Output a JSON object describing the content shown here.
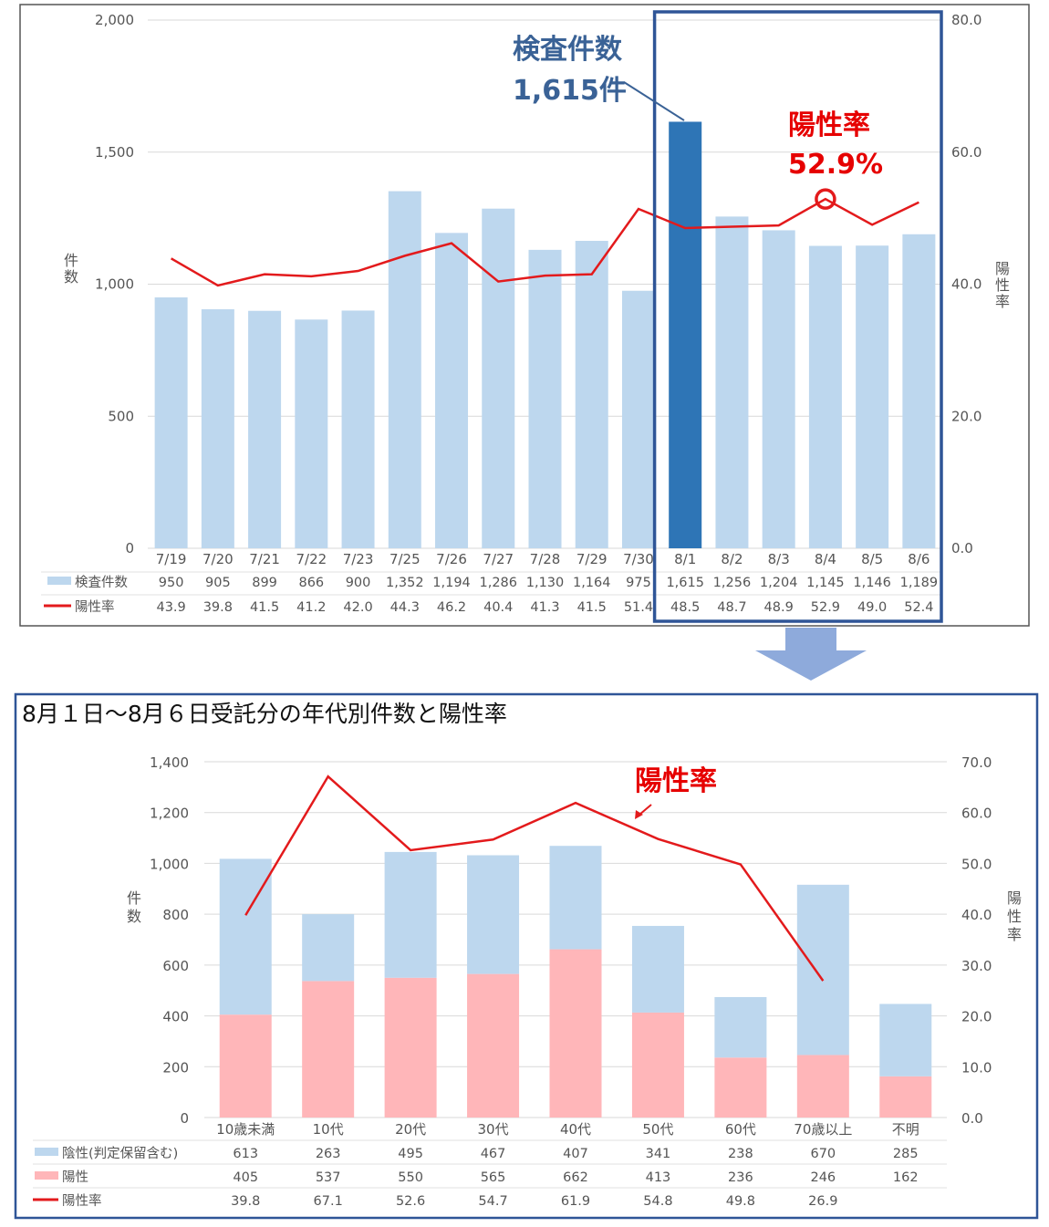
{
  "chart_data": [
    {
      "type": "bar",
      "categories": [
        "7/19",
        "7/20",
        "7/21",
        "7/22",
        "7/23",
        "7/25",
        "7/26",
        "7/27",
        "7/28",
        "7/29",
        "7/30",
        "8/1",
        "8/2",
        "8/3",
        "8/4",
        "8/5",
        "8/6"
      ],
      "series": [
        {
          "name": "検査件数",
          "type": "bar",
          "labels": [
            "950",
            "905",
            "899",
            "866",
            "900",
            "1,352",
            "1,194",
            "1,286",
            "1,130",
            "1,164",
            "975",
            "1,615",
            "1,256",
            "1,204",
            "1,145",
            "1,146",
            "1,189"
          ],
          "values": [
            950,
            905,
            899,
            866,
            900,
            1352,
            1194,
            1286,
            1130,
            1164,
            975,
            1615,
            1256,
            1204,
            1145,
            1146,
            1189
          ]
        },
        {
          "name": "陽性率",
          "type": "line",
          "axis": "right",
          "labels": [
            "43.9",
            "39.8",
            "41.5",
            "41.2",
            "42.0",
            "44.3",
            "46.2",
            "40.4",
            "41.3",
            "41.5",
            "51.4",
            "48.5",
            "48.7",
            "48.9",
            "52.9",
            "49.0",
            "52.4"
          ],
          "values": [
            43.9,
            39.8,
            41.5,
            41.2,
            42.0,
            44.3,
            46.2,
            40.4,
            41.3,
            41.5,
            51.4,
            48.5,
            48.7,
            48.9,
            52.9,
            49.0,
            52.4
          ]
        }
      ],
      "ylabel": "件数",
      "y2label": "陽性率",
      "ylim": [
        0,
        2000
      ],
      "y2lim": [
        0,
        80
      ],
      "yticks": [
        "0",
        "500",
        "1,000",
        "1,500",
        "2,000"
      ],
      "y2ticks": [
        "0.0",
        "20.0",
        "40.0",
        "60.0",
        "80.0"
      ],
      "highlight_index": 11,
      "highlight_box": [
        "8/1",
        "8/6"
      ],
      "annotations": {
        "count_title": "検査件数",
        "count_value": "1,615件",
        "rate_title": "陽性率",
        "rate_value": "52.9%",
        "rate_marker_index": 14
      },
      "colors": {
        "bar": "#bdd7ee",
        "bar_highlight": "#2e75b6",
        "line": "#e31a1c",
        "box": "#2f5597",
        "ann_blue": "#3a6296",
        "ann_red": "#e60000"
      },
      "grid": true
    },
    {
      "type": "bar",
      "stacked": true,
      "title": "8月１日～8月６日受託分の年代別件数と陽性率",
      "categories": [
        "10歳未満",
        "10代",
        "20代",
        "30代",
        "40代",
        "50代",
        "60代",
        "70歳以上",
        "不明"
      ],
      "series": [
        {
          "name": "陽性",
          "type": "bar",
          "labels": [
            "405",
            "537",
            "550",
            "565",
            "662",
            "413",
            "236",
            "246",
            "162"
          ],
          "values": [
            405,
            537,
            550,
            565,
            662,
            413,
            236,
            246,
            162
          ]
        },
        {
          "name": "陰性(判定保留含む)",
          "type": "bar",
          "labels": [
            "613",
            "263",
            "495",
            "467",
            "407",
            "341",
            "238",
            "670",
            "285"
          ],
          "values": [
            613,
            263,
            495,
            467,
            407,
            341,
            238,
            670,
            285
          ]
        },
        {
          "name": "陽性率",
          "type": "line",
          "axis": "right",
          "labels": [
            "39.8",
            "67.1",
            "52.6",
            "54.7",
            "61.9",
            "54.8",
            "49.8",
            "26.9",
            ""
          ],
          "values": [
            39.8,
            67.1,
            52.6,
            54.7,
            61.9,
            54.8,
            49.8,
            26.9,
            null
          ]
        }
      ],
      "ylabel": "件数",
      "y2label": "陽性率",
      "ylim": [
        0,
        1400
      ],
      "y2lim": [
        0,
        70
      ],
      "yticks": [
        "0",
        "200",
        "400",
        "600",
        "800",
        "1,000",
        "1,200",
        "1,400"
      ],
      "y2ticks": [
        "0.0",
        "10.0",
        "20.0",
        "30.0",
        "40.0",
        "50.0",
        "60.0",
        "70.0"
      ],
      "annotations": {
        "rate_title": "陽性率"
      },
      "colors": {
        "neg": "#bdd7ee",
        "pos": "#ffb6b9",
        "line": "#e31a1c",
        "frame": "#2f5597",
        "arrow": "#8eaadb"
      },
      "grid": true
    }
  ]
}
